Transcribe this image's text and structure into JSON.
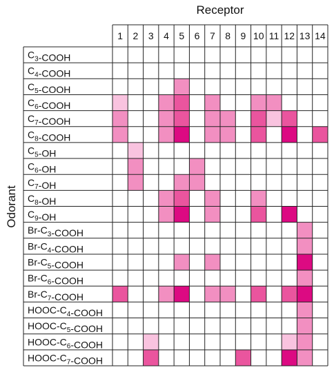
{
  "chart_data": {
    "type": "heatmap",
    "title": "",
    "xlabel": "Receptor",
    "ylabel": "Odorant",
    "columns": [
      "1",
      "2",
      "3",
      "4",
      "5",
      "6",
      "7",
      "8",
      "9",
      "10",
      "11",
      "12",
      "13",
      "14"
    ],
    "rows": [
      {
        "label": [
          [
            "C",
            ""
          ],
          [
            "3",
            "sub"
          ],
          [
            "-COOH",
            ""
          ]
        ]
      },
      {
        "label": [
          [
            "C",
            ""
          ],
          [
            "4",
            "sub"
          ],
          [
            "-COOH",
            ""
          ]
        ]
      },
      {
        "label": [
          [
            "C",
            ""
          ],
          [
            "5",
            "sub"
          ],
          [
            "-COOH",
            ""
          ]
        ]
      },
      {
        "label": [
          [
            "C",
            ""
          ],
          [
            "6",
            "sub"
          ],
          [
            "-COOH",
            ""
          ]
        ]
      },
      {
        "label": [
          [
            "C",
            ""
          ],
          [
            "7",
            "sub"
          ],
          [
            "-COOH",
            ""
          ]
        ]
      },
      {
        "label": [
          [
            "C",
            ""
          ],
          [
            "8",
            "sub"
          ],
          [
            "-COOH",
            ""
          ]
        ]
      },
      {
        "label": [
          [
            "C",
            ""
          ],
          [
            "5",
            "sub"
          ],
          [
            "-OH",
            ""
          ]
        ]
      },
      {
        "label": [
          [
            "C",
            ""
          ],
          [
            "6",
            "sub"
          ],
          [
            "-OH",
            ""
          ]
        ]
      },
      {
        "label": [
          [
            "C",
            ""
          ],
          [
            "7",
            "sub"
          ],
          [
            "-OH",
            ""
          ]
        ]
      },
      {
        "label": [
          [
            "C",
            ""
          ],
          [
            "8",
            "sub"
          ],
          [
            "-OH",
            ""
          ]
        ]
      },
      {
        "label": [
          [
            "C",
            ""
          ],
          [
            "9",
            "sub"
          ],
          [
            "-OH",
            ""
          ]
        ]
      },
      {
        "label": [
          [
            "Br-C",
            ""
          ],
          [
            "3",
            "sub"
          ],
          [
            "-COOH",
            ""
          ]
        ]
      },
      {
        "label": [
          [
            "Br-C",
            ""
          ],
          [
            "4",
            "sub"
          ],
          [
            "-COOH",
            ""
          ]
        ]
      },
      {
        "label": [
          [
            "Br-C",
            ""
          ],
          [
            "5",
            "sub"
          ],
          [
            "-COOH",
            ""
          ]
        ]
      },
      {
        "label": [
          [
            "Br-C",
            ""
          ],
          [
            "6",
            "sub"
          ],
          [
            "-COOH",
            ""
          ]
        ]
      },
      {
        "label": [
          [
            "Br-C",
            ""
          ],
          [
            "7",
            "sub"
          ],
          [
            "-COOH",
            ""
          ]
        ]
      },
      {
        "label": [
          [
            "HOOC-C",
            ""
          ],
          [
            "4",
            "sub"
          ],
          [
            "-COOH",
            ""
          ]
        ]
      },
      {
        "label": [
          [
            "HOOC-C",
            ""
          ],
          [
            "5",
            "sub"
          ],
          [
            "-COOH",
            ""
          ]
        ]
      },
      {
        "label": [
          [
            "HOOC-C",
            ""
          ],
          [
            "6",
            "sub"
          ],
          [
            "-COOH",
            ""
          ]
        ]
      },
      {
        "label": [
          [
            "HOOC-C",
            ""
          ],
          [
            "7",
            "sub"
          ],
          [
            "-COOH",
            ""
          ]
        ]
      }
    ],
    "values": [
      [
        0,
        0,
        0,
        0,
        0,
        0,
        0,
        0,
        0,
        0,
        0,
        0,
        0,
        0
      ],
      [
        0,
        0,
        0,
        0,
        0,
        0,
        0,
        0,
        0,
        0,
        0,
        0,
        0,
        0
      ],
      [
        0,
        0,
        0,
        0,
        2,
        0,
        0,
        0,
        0,
        0,
        0,
        0,
        0,
        0
      ],
      [
        1,
        0,
        0,
        2,
        3,
        0,
        2,
        0,
        0,
        2,
        2,
        0,
        0,
        0
      ],
      [
        2,
        0,
        0,
        2,
        3,
        0,
        2,
        2,
        0,
        3,
        1,
        3,
        0,
        0
      ],
      [
        2,
        0,
        0,
        2,
        4,
        0,
        2,
        2,
        0,
        3,
        0,
        4,
        0,
        3
      ],
      [
        0,
        1,
        0,
        0,
        0,
        0,
        0,
        0,
        0,
        0,
        0,
        0,
        0,
        0
      ],
      [
        0,
        2,
        0,
        0,
        0,
        2,
        0,
        0,
        0,
        0,
        0,
        0,
        0,
        0
      ],
      [
        0,
        2,
        0,
        0,
        2,
        2,
        0,
        0,
        0,
        0,
        0,
        0,
        0,
        0
      ],
      [
        0,
        0,
        0,
        2,
        3,
        0,
        2,
        0,
        0,
        2,
        0,
        0,
        0,
        0
      ],
      [
        0,
        0,
        0,
        2,
        4,
        0,
        2,
        0,
        0,
        3,
        0,
        4,
        0,
        0
      ],
      [
        0,
        0,
        0,
        0,
        0,
        0,
        0,
        0,
        0,
        0,
        0,
        0,
        2,
        0
      ],
      [
        0,
        0,
        0,
        0,
        0,
        0,
        0,
        0,
        0,
        0,
        0,
        0,
        2,
        0
      ],
      [
        0,
        0,
        0,
        0,
        2,
        0,
        2,
        0,
        0,
        0,
        0,
        0,
        4,
        0
      ],
      [
        0,
        0,
        0,
        0,
        0,
        0,
        0,
        0,
        0,
        0,
        0,
        0,
        2,
        0
      ],
      [
        3,
        0,
        0,
        2,
        4,
        0,
        2,
        2,
        0,
        3,
        0,
        3,
        4,
        0
      ],
      [
        0,
        0,
        0,
        0,
        0,
        0,
        0,
        0,
        0,
        0,
        0,
        0,
        2,
        0
      ],
      [
        0,
        0,
        0,
        0,
        0,
        0,
        0,
        0,
        0,
        0,
        0,
        0,
        2,
        0
      ],
      [
        0,
        0,
        1,
        0,
        0,
        0,
        0,
        0,
        0,
        0,
        0,
        1,
        2,
        0
      ],
      [
        0,
        0,
        3,
        0,
        0,
        0,
        0,
        0,
        3,
        0,
        0,
        4,
        2,
        0
      ]
    ],
    "levels": [
      0,
      1,
      2,
      3,
      4
    ],
    "colors": [
      "#ffffff",
      "#f9c3df",
      "#f28fc1",
      "#ea559e",
      "#dc0a82"
    ],
    "grid": true,
    "legend": "none"
  }
}
